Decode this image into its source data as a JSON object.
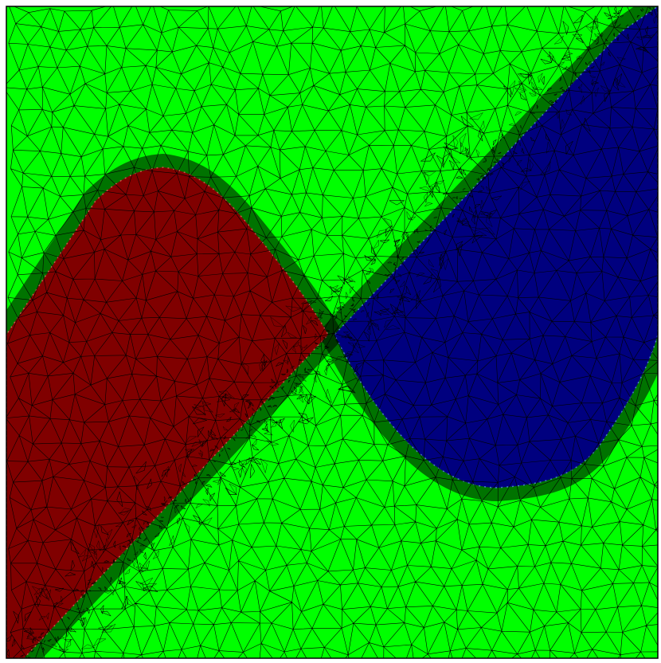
{
  "colors": {
    "background_field": "#00ff00",
    "left_region": "#800000",
    "right_region": "#00007f",
    "mesh_edge": "#000000",
    "frame": "#000000",
    "interface_glow": "#ff6666",
    "interface_glow_right": "#6699ff"
  },
  "regions": [
    {
      "name": "left-region",
      "color_key": "left_region"
    },
    {
      "name": "right-region",
      "color_key": "right_region"
    },
    {
      "name": "background-field",
      "color_key": "background_field"
    }
  ]
}
